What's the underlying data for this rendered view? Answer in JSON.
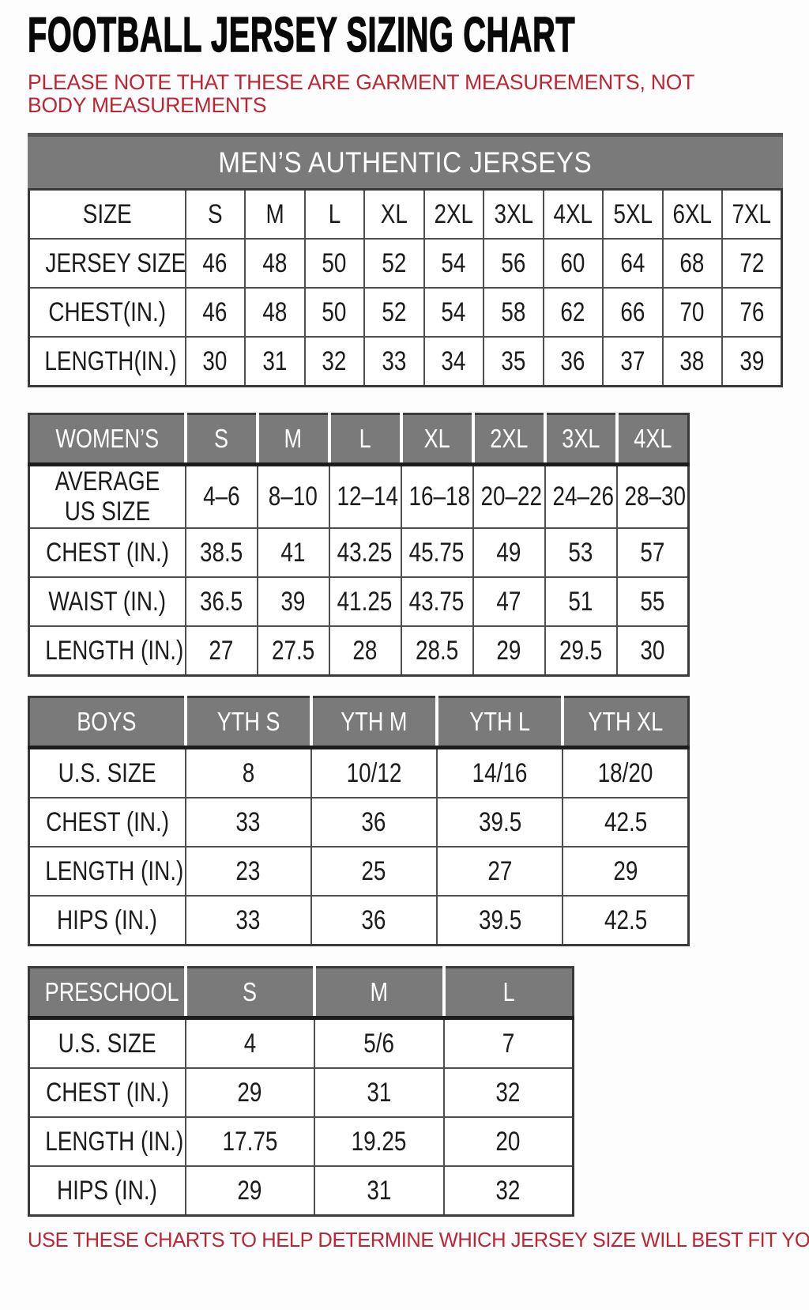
{
  "page": {
    "title": "FOOTBALL JERSEY SIZING CHART",
    "note": "PLEASE NOTE THAT THESE ARE GARMENT MEASUREMENTS, NOT BODY MEASUREMENTS",
    "footer": "USE THESE CHARTS TO HELP DETERMINE WHICH JERSEY SIZE WILL BEST FIT YOU.",
    "colors": {
      "accent_red": "#bd2533",
      "header_gray": "#7a7a7a",
      "border_dark": "#3a3a3a"
    }
  },
  "tables": {
    "mens": {
      "banner": "MEN’S AUTHENTIC JERSEYS",
      "rows": [
        {
          "label": "SIZE",
          "values": [
            "S",
            "M",
            "L",
            "XL",
            "2XL",
            "3XL",
            "4XL",
            "5XL",
            "6XL",
            "7XL"
          ]
        },
        {
          "label": "JERSEY SIZE",
          "values": [
            "46",
            "48",
            "50",
            "52",
            "54",
            "56",
            "60",
            "64",
            "68",
            "72"
          ]
        },
        {
          "label": "CHEST(IN.)",
          "values": [
            "46",
            "48",
            "50",
            "52",
            "54",
            "58",
            "62",
            "66",
            "70",
            "76"
          ]
        },
        {
          "label": "LENGTH(IN.)",
          "values": [
            "30",
            "31",
            "32",
            "33",
            "34",
            "35",
            "36",
            "37",
            "38",
            "39"
          ]
        }
      ]
    },
    "womens": {
      "header": {
        "label": "WOMEN’S",
        "sizes": [
          "S",
          "M",
          "L",
          "XL",
          "2XL",
          "3XL",
          "4XL"
        ]
      },
      "rows": [
        {
          "label": "AVERAGE\nUS SIZE",
          "values": [
            "4–6",
            "8–10",
            "12–14",
            "16–18",
            "20–22",
            "24–26",
            "28–30"
          ]
        },
        {
          "label": "CHEST (IN.)",
          "values": [
            "38.5",
            "41",
            "43.25",
            "45.75",
            "49",
            "53",
            "57"
          ]
        },
        {
          "label": "WAIST (IN.)",
          "values": [
            "36.5",
            "39",
            "41.25",
            "43.75",
            "47",
            "51",
            "55"
          ]
        },
        {
          "label": "LENGTH (IN.)",
          "values": [
            "27",
            "27.5",
            "28",
            "28.5",
            "29",
            "29.5",
            "30"
          ]
        }
      ]
    },
    "boys": {
      "header": {
        "label": "BOYS",
        "sizes": [
          "YTH S",
          "YTH M",
          "YTH L",
          "YTH XL"
        ]
      },
      "rows": [
        {
          "label": "U.S. SIZE",
          "values": [
            "8",
            "10/12",
            "14/16",
            "18/20"
          ]
        },
        {
          "label": "CHEST (IN.)",
          "values": [
            "33",
            "36",
            "39.5",
            "42.5"
          ]
        },
        {
          "label": "LENGTH (IN.)",
          "values": [
            "23",
            "25",
            "27",
            "29"
          ]
        },
        {
          "label": "HIPS (IN.)",
          "values": [
            "33",
            "36",
            "39.5",
            "42.5"
          ]
        }
      ]
    },
    "preschool": {
      "header": {
        "label": "PRESCHOOL",
        "sizes": [
          "S",
          "M",
          "L"
        ]
      },
      "rows": [
        {
          "label": "U.S. SIZE",
          "values": [
            "4",
            "5/6",
            "7"
          ]
        },
        {
          "label": "CHEST (IN.)",
          "values": [
            "29",
            "31",
            "32"
          ]
        },
        {
          "label": "LENGTH (IN.)",
          "values": [
            "17.75",
            "19.25",
            "20"
          ]
        },
        {
          "label": "HIPS (IN.)",
          "values": [
            "29",
            "31",
            "32"
          ]
        }
      ]
    }
  }
}
